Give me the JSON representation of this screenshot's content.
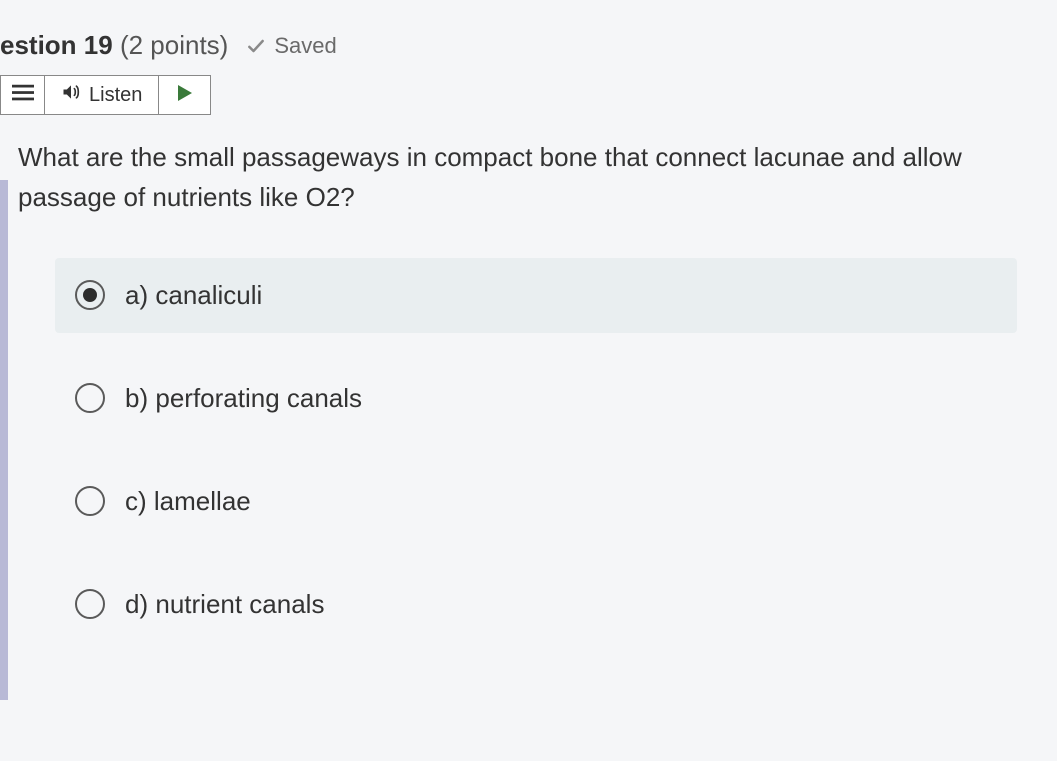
{
  "header": {
    "question_label": "estion 19",
    "points_label": "(2 points)",
    "saved_label": "Saved"
  },
  "listen": {
    "label": "Listen"
  },
  "question": {
    "text": "What are the small passageways in compact bone that connect lacunae and allow passage of nutrients like O2?"
  },
  "options": [
    {
      "letter": "a)",
      "text": "canaliculi",
      "selected": true
    },
    {
      "letter": "b)",
      "text": "perforating canals",
      "selected": false
    },
    {
      "letter": "c)",
      "text": "lamellae",
      "selected": false
    },
    {
      "letter": "d)",
      "text": "nutrient canals",
      "selected": false
    }
  ],
  "colors": {
    "page_bg": "#f5f6f8",
    "text": "#2d2d2d",
    "muted": "#6a6a6a",
    "border": "#888888",
    "selected_bg": "#e9eef0",
    "rail": "#b8b9d6",
    "check": "#8a8a8a",
    "play": "#3a7a3a"
  }
}
